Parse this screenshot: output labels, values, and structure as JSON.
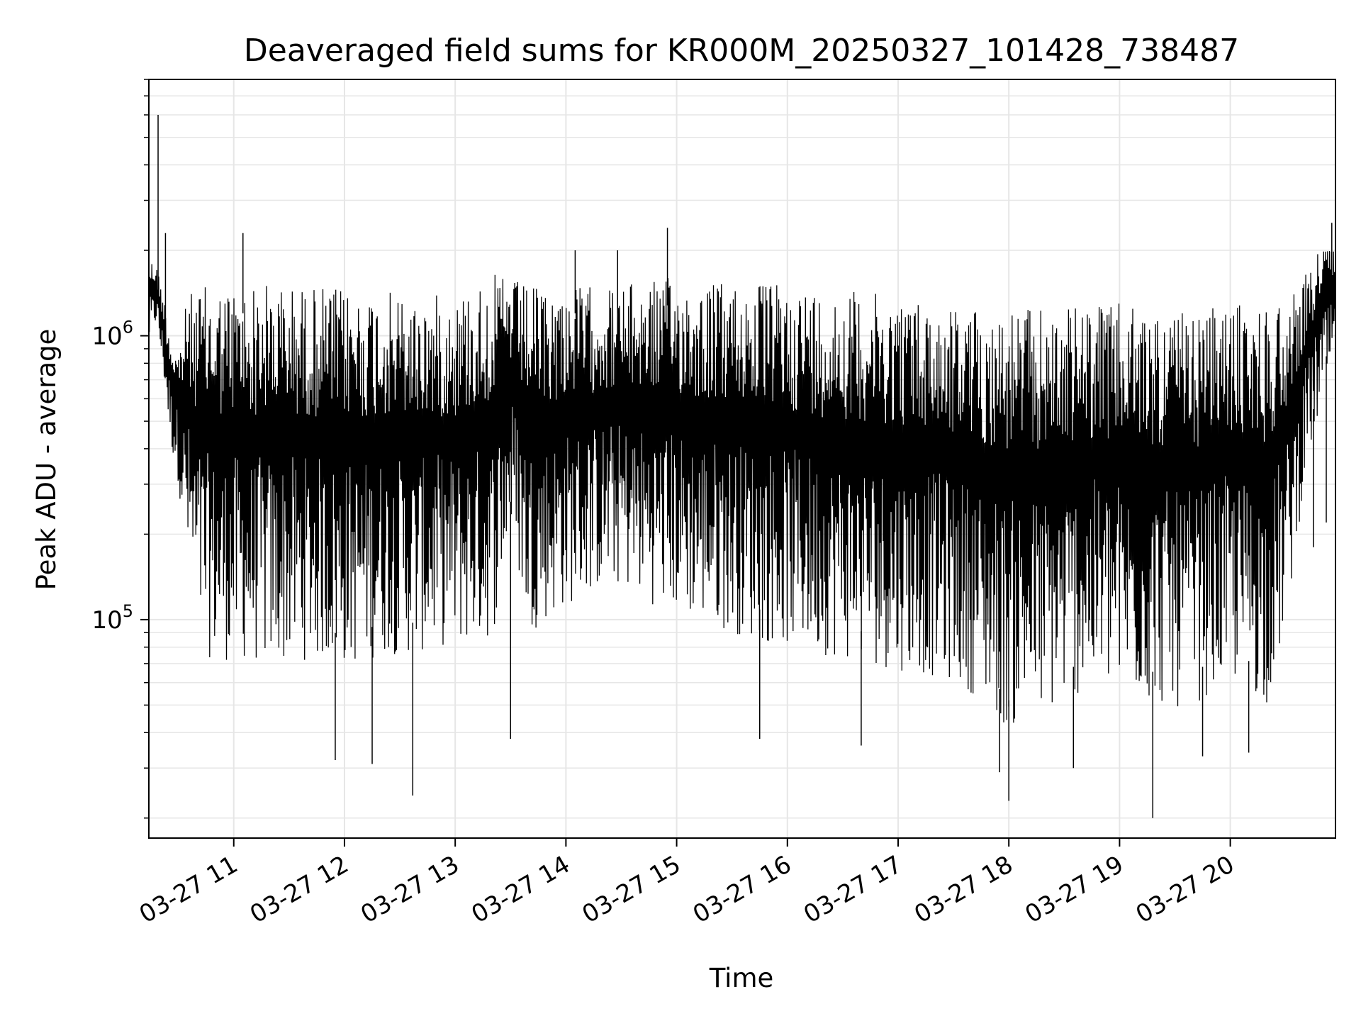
{
  "chart_data": {
    "type": "line",
    "title": "Deaveraged field sums for KR000M_20250327_101428_738487",
    "xlabel": "Time",
    "ylabel": "Peak ADU - average",
    "yscale": "log",
    "ylim": [
      17000,
      8000000
    ],
    "xlim": [
      "2025-03-27 10:14",
      "2025-03-27 20:57"
    ],
    "grid": true,
    "line_color": "#000000",
    "x_ticks": [
      {
        "value": "2025-03-27 11:00",
        "label": "03-27 11"
      },
      {
        "value": "2025-03-27 12:00",
        "label": "03-27 12"
      },
      {
        "value": "2025-03-27 13:00",
        "label": "03-27 13"
      },
      {
        "value": "2025-03-27 14:00",
        "label": "03-27 14"
      },
      {
        "value": "2025-03-27 15:00",
        "label": "03-27 15"
      },
      {
        "value": "2025-03-27 16:00",
        "label": "03-27 16"
      },
      {
        "value": "2025-03-27 17:00",
        "label": "03-27 17"
      },
      {
        "value": "2025-03-27 18:00",
        "label": "03-27 18"
      },
      {
        "value": "2025-03-27 19:00",
        "label": "03-27 19"
      },
      {
        "value": "2025-03-27 20:00",
        "label": "03-27 20"
      }
    ],
    "y_ticks": [
      {
        "value": 100000,
        "base": "10",
        "exp": "5"
      },
      {
        "value": 1000000,
        "base": "10",
        "exp": "6"
      }
    ],
    "series": [
      {
        "x": [
          "2025-03-27 10:14",
          "2025-03-27 10:18",
          "2025-03-27 10:22",
          "2025-03-27 10:26",
          "2025-03-27 10:30",
          "2025-03-27 10:35",
          "2025-03-27 10:40",
          "2025-03-27 10:45",
          "2025-03-27 10:50",
          "2025-03-27 11:00",
          "2025-03-27 11:10",
          "2025-03-27 11:20",
          "2025-03-27 11:30",
          "2025-03-27 11:40",
          "2025-03-27 11:50",
          "2025-03-27 12:00",
          "2025-03-27 12:10",
          "2025-03-27 12:20",
          "2025-03-27 12:30",
          "2025-03-27 12:40",
          "2025-03-27 12:50",
          "2025-03-27 13:00",
          "2025-03-27 13:10",
          "2025-03-27 13:20",
          "2025-03-27 13:30",
          "2025-03-27 13:40",
          "2025-03-27 13:50",
          "2025-03-27 14:00",
          "2025-03-27 14:10",
          "2025-03-27 14:20",
          "2025-03-27 14:30",
          "2025-03-27 14:40",
          "2025-03-27 14:50",
          "2025-03-27 15:00",
          "2025-03-27 15:10",
          "2025-03-27 15:20",
          "2025-03-27 15:30",
          "2025-03-27 15:40",
          "2025-03-27 15:50",
          "2025-03-27 16:00",
          "2025-03-27 16:10",
          "2025-03-27 16:20",
          "2025-03-27 16:30",
          "2025-03-27 16:40",
          "2025-03-27 16:50",
          "2025-03-27 17:00",
          "2025-03-27 17:10",
          "2025-03-27 17:20",
          "2025-03-27 17:30",
          "2025-03-27 17:40",
          "2025-03-27 17:50",
          "2025-03-27 18:00",
          "2025-03-27 18:10",
          "2025-03-27 18:20",
          "2025-03-27 18:30",
          "2025-03-27 18:40",
          "2025-03-27 18:50",
          "2025-03-27 19:00",
          "2025-03-27 19:10",
          "2025-03-27 19:20",
          "2025-03-27 19:30",
          "2025-03-27 19:40",
          "2025-03-27 19:50",
          "2025-03-27 20:00",
          "2025-03-27 20:10",
          "2025-03-27 20:20",
          "2025-03-27 20:30",
          "2025-03-27 20:40",
          "2025-03-27 20:50",
          "2025-03-27 20:57"
        ],
        "upper": [
          1900000,
          1800000,
          1400000,
          1000000,
          900000,
          1400000,
          1450000,
          1500000,
          1500000,
          1500000,
          1500000,
          1550000,
          1500000,
          1500000,
          1500000,
          1450000,
          1450000,
          1450000,
          1400000,
          1350000,
          1400000,
          1400000,
          1500000,
          1650000,
          1600000,
          1500000,
          1450000,
          1500000,
          1500000,
          1500000,
          1500000,
          1550000,
          1600000,
          1600000,
          1550000,
          1550000,
          1550000,
          1550000,
          1550000,
          1500000,
          1500000,
          1450000,
          1450000,
          1450000,
          1400000,
          1400000,
          1350000,
          1300000,
          1300000,
          1250000,
          1250000,
          1250000,
          1250000,
          1250000,
          1250000,
          1300000,
          1300000,
          1300000,
          1250000,
          1250000,
          1200000,
          1200000,
          1250000,
          1300000,
          1300000,
          1300000,
          1400000,
          1600000,
          2200000,
          2000000
        ],
        "lower": [
          900000,
          1100000,
          700000,
          400000,
          300000,
          150000,
          90000,
          75000,
          70000,
          72000,
          70000,
          68000,
          70000,
          72000,
          70000,
          68000,
          70000,
          75000,
          75000,
          75000,
          80000,
          80000,
          82000,
          85000,
          200000,
          90000,
          100000,
          110000,
          120000,
          130000,
          130000,
          120000,
          110000,
          105000,
          100000,
          95000,
          90000,
          85000,
          82000,
          80000,
          78000,
          75000,
          72000,
          70000,
          68000,
          66000,
          65000,
          62000,
          60000,
          55000,
          48000,
          40000,
          45000,
          45000,
          50000,
          55000,
          55000,
          55000,
          52000,
          50000,
          48000,
          50000,
          55000,
          60000,
          55000,
          50000,
          90000,
          300000,
          600000,
          800000
        ],
        "spikes": [
          {
            "x": "2025-03-27 10:19",
            "y": 6000000
          },
          {
            "x": "2025-03-27 10:23",
            "y": 2300000
          },
          {
            "x": "2025-03-27 11:05",
            "y": 2300000
          },
          {
            "x": "2025-03-27 14:05",
            "y": 2000000
          },
          {
            "x": "2025-03-27 14:28",
            "y": 2000000
          },
          {
            "x": "2025-03-27 14:55",
            "y": 2400000
          },
          {
            "x": "2025-03-27 20:55",
            "y": 2500000
          },
          {
            "x": "2025-03-27 12:37",
            "y": 24000
          },
          {
            "x": "2025-03-27 18:00",
            "y": 23000
          },
          {
            "x": "2025-03-27 19:18",
            "y": 20000
          },
          {
            "x": "2025-03-27 11:55",
            "y": 32000
          },
          {
            "x": "2025-03-27 12:15",
            "y": 31000
          },
          {
            "x": "2025-03-27 13:30",
            "y": 38000
          },
          {
            "x": "2025-03-27 15:45",
            "y": 38000
          },
          {
            "x": "2025-03-27 16:40",
            "y": 36000
          },
          {
            "x": "2025-03-27 17:55",
            "y": 29000
          },
          {
            "x": "2025-03-27 18:35",
            "y": 30000
          },
          {
            "x": "2025-03-27 19:45",
            "y": 33000
          },
          {
            "x": "2025-03-27 20:10",
            "y": 34000
          },
          {
            "x": "2025-03-27 20:45",
            "y": 180000
          },
          {
            "x": "2025-03-27 20:52",
            "y": 220000
          }
        ]
      }
    ]
  }
}
